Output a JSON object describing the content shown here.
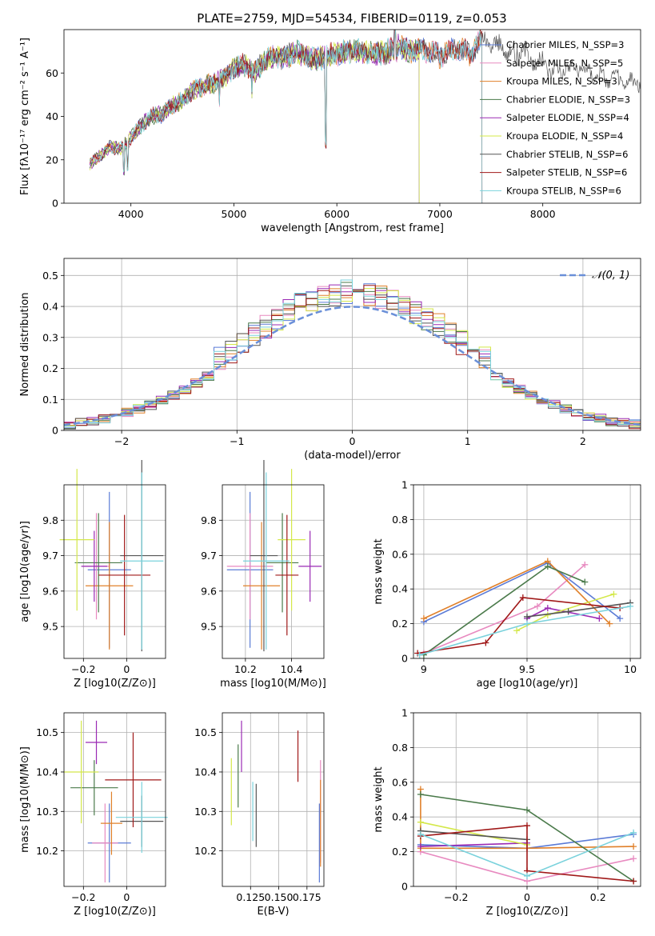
{
  "chart_data": [
    {
      "type": "line",
      "title": "PLATE=2759, MJD=54534, FIBERID=0119, z=0.053",
      "xlabel": "wavelength [Angstrom, rest frame]",
      "ylabel": "Flux [fλ10⁻¹⁷ erg cm⁻² s⁻¹ A⁻¹]",
      "xlim": [
        3350,
        8950
      ],
      "ylim": [
        0,
        80
      ],
      "xticks": [
        4000,
        5000,
        6000,
        7000,
        8000
      ],
      "yticks": [
        0,
        20,
        40,
        60
      ],
      "legend_position": "upper-right",
      "spectrum": {
        "x": [
          3600,
          3700,
          3800,
          3900,
          4000,
          4100,
          4200,
          4300,
          4400,
          4500,
          4600,
          4700,
          4800,
          4900,
          5000,
          5100,
          5200,
          5300,
          5400,
          5500,
          5600,
          5700,
          5800,
          5900,
          6000,
          6100,
          6200,
          6300,
          6400,
          6500,
          6600,
          6700,
          6800,
          6900,
          7000,
          7100,
          7200,
          7300,
          7400,
          7500,
          7600,
          7700,
          7800,
          7900,
          8000,
          8100,
          8200,
          8300,
          8400,
          8500,
          8600,
          8700,
          8800,
          8900
        ],
        "y": [
          18,
          22,
          26,
          25,
          30,
          36,
          40,
          41,
          45,
          47,
          52,
          54,
          55,
          58,
          62,
          64,
          60,
          66,
          68,
          67,
          70,
          68,
          66,
          68,
          69,
          70,
          70,
          69,
          69,
          70,
          72,
          70,
          71,
          70,
          68,
          70,
          71,
          69,
          75,
          74,
          72,
          68,
          70,
          66,
          65,
          61,
          62,
          63,
          62,
          60,
          57,
          58,
          55,
          56
        ]
      },
      "series": [
        {
          "name": "Chabrier MILES, N_SSP=3",
          "color": "#5b7bd6",
          "end_x": 7410
        },
        {
          "name": "Salpeter MILES, N_SSP=5",
          "color": "#e88ac0",
          "end_x": 7410
        },
        {
          "name": "Kroupa MILES, N_SSP=3",
          "color": "#e0802a",
          "end_x": 7410
        },
        {
          "name": "Chabrier ELODIE, N_SSP=3",
          "color": "#4a7a4a",
          "end_x": 6800
        },
        {
          "name": "Salpeter ELODIE, N_SSP=4",
          "color": "#9a2ab4",
          "end_x": 6800
        },
        {
          "name": "Kroupa ELODIE, N_SSP=4",
          "color": "#d4e84a",
          "end_x": 6800
        },
        {
          "name": "Chabrier STELIB, N_SSP=6",
          "color": "#555555",
          "end_x": 8950
        },
        {
          "name": "Salpeter STELIB, N_SSP=6",
          "color": "#a01818",
          "end_x": 7410
        },
        {
          "name": "Kroupa STELIB, N_SSP=6",
          "color": "#7ad2dc",
          "end_x": 7410
        }
      ]
    },
    {
      "type": "line",
      "xlabel": "(data-model)/error",
      "ylabel": "Normed distribution",
      "xlim": [
        -2.5,
        2.5
      ],
      "ylim": [
        0,
        0.555
      ],
      "xticks": [
        -2,
        -1,
        0,
        1,
        2
      ],
      "yticks": [
        0.0,
        0.1,
        0.2,
        0.3,
        0.4,
        0.5
      ],
      "grid": true,
      "legend_label": "𝒩(0, 1)",
      "legend_position": "upper-right",
      "reference_color": "#6a8fd8",
      "hist_colors": [
        "#5b7bd6",
        "#e88ac0",
        "#e0802a",
        "#4a7a4a",
        "#9a2ab4",
        "#d4e84a",
        "#555555",
        "#a01818",
        "#7ad2dc"
      ]
    },
    {
      "type": "scatter",
      "xlabel": "Z [log10(Z/Z⊙)]",
      "ylabel": "age  [log10(age/yr)]",
      "xlim": [
        -0.29,
        0.18
      ],
      "ylim": [
        9.41,
        9.9
      ],
      "xticks": [
        -0.2,
        0.0
      ],
      "yticks": [
        9.5,
        9.6,
        9.7,
        9.8
      ],
      "grid": true,
      "points": [
        {
          "color": "#5b7bd6",
          "x": -0.08,
          "xerr": 0.1,
          "y": 9.66,
          "yerr": 0.22
        },
        {
          "color": "#e88ac0",
          "x": -0.14,
          "xerr": 0.06,
          "y": 9.67,
          "yerr": 0.15
        },
        {
          "color": "#e0802a",
          "x": -0.08,
          "xerr": 0.11,
          "y": 9.615,
          "yerr": 0.18
        },
        {
          "color": "#4a7a4a",
          "x": -0.13,
          "xerr": 0.11,
          "y": 9.68,
          "yerr": 0.14
        },
        {
          "color": "#9a2ab4",
          "x": -0.15,
          "xerr": 0.06,
          "y": 9.67,
          "yerr": 0.1
        },
        {
          "color": "#d4e84a",
          "x": -0.23,
          "xerr": 0.08,
          "y": 9.745,
          "yerr": 0.2
        },
        {
          "color": "#555555",
          "x": 0.07,
          "xerr": 0.1,
          "y": 9.7,
          "yerr": 0.27
        },
        {
          "color": "#a01818",
          "x": -0.01,
          "xerr": 0.12,
          "y": 9.645,
          "yerr": 0.17
        },
        {
          "color": "#7ad2dc",
          "x": 0.07,
          "xerr": 0.1,
          "y": 9.685,
          "yerr": 0.25
        }
      ]
    },
    {
      "type": "scatter",
      "xlabel": "mass [log10(M/M⊙)]",
      "xlim": [
        10.1,
        10.54
      ],
      "ylim": [
        9.41,
        9.9
      ],
      "xticks": [
        10.2,
        10.4
      ],
      "yticks": [
        9.5,
        9.6,
        9.7,
        9.8
      ],
      "grid": true,
      "points": [
        {
          "color": "#5b7bd6",
          "x": 10.22,
          "xerr": 0.1,
          "y": 9.66,
          "yerr": 0.22
        },
        {
          "color": "#e88ac0",
          "x": 10.22,
          "xerr": 0.1,
          "y": 9.67,
          "yerr": 0.15
        },
        {
          "color": "#e0802a",
          "x": 10.27,
          "xerr": 0.08,
          "y": 9.615,
          "yerr": 0.18
        },
        {
          "color": "#4a7a4a",
          "x": 10.36,
          "xerr": 0.07,
          "y": 9.68,
          "yerr": 0.14
        },
        {
          "color": "#9a2ab4",
          "x": 10.48,
          "xerr": 0.05,
          "y": 9.67,
          "yerr": 0.1
        },
        {
          "color": "#d4e84a",
          "x": 10.4,
          "xerr": 0.06,
          "y": 9.745,
          "yerr": 0.2
        },
        {
          "color": "#555555",
          "x": 10.28,
          "xerr": 0.06,
          "y": 9.7,
          "yerr": 0.27
        },
        {
          "color": "#a01818",
          "x": 10.38,
          "xerr": 0.05,
          "y": 9.645,
          "yerr": 0.17
        },
        {
          "color": "#7ad2dc",
          "x": 10.29,
          "xerr": 0.1,
          "y": 9.685,
          "yerr": 0.25
        }
      ]
    },
    {
      "type": "line",
      "xlabel": "age  [log10(age/yr)]",
      "ylabel": "mass weight",
      "xlim": [
        8.95,
        10.05
      ],
      "ylim": [
        0,
        1
      ],
      "xticks": [
        9.0,
        9.5,
        10.0
      ],
      "yticks": [
        0.0,
        0.2,
        0.4,
        0.6,
        0.8,
        1.0
      ],
      "grid": true,
      "series": [
        {
          "color": "#5b7bd6",
          "x": [
            9.0,
            9.6,
            9.95
          ],
          "y": [
            0.21,
            0.55,
            0.23
          ]
        },
        {
          "color": "#e88ac0",
          "x": [
            9.0,
            9.55,
            9.78
          ],
          "y": [
            0.03,
            0.3,
            0.54
          ]
        },
        {
          "color": "#e0802a",
          "x": [
            9.0,
            9.6,
            9.9
          ],
          "y": [
            0.23,
            0.56,
            0.2
          ]
        },
        {
          "color": "#4a7a4a",
          "x": [
            9.0,
            9.6,
            9.78
          ],
          "y": [
            0.02,
            0.53,
            0.44
          ]
        },
        {
          "color": "#9a2ab4",
          "x": [
            9.5,
            9.6,
            9.85
          ],
          "y": [
            0.23,
            0.29,
            0.23
          ]
        },
        {
          "color": "#d4e84a",
          "x": [
            9.45,
            9.6,
            9.92
          ],
          "y": [
            0.16,
            0.25,
            0.37
          ]
        },
        {
          "color": "#555555",
          "x": [
            9.5,
            9.7,
            10.0
          ],
          "y": [
            0.24,
            0.27,
            0.32
          ]
        },
        {
          "color": "#a01818",
          "x": [
            8.97,
            9.3,
            9.48,
            9.95
          ],
          "y": [
            0.03,
            0.09,
            0.35,
            0.29
          ]
        },
        {
          "color": "#7ad2dc",
          "x": [
            8.98,
            9.5,
            10.0
          ],
          "y": [
            0.02,
            0.2,
            0.3
          ]
        }
      ]
    },
    {
      "type": "scatter",
      "xlabel": "Z [log10(Z/Z⊙)]",
      "ylabel": "mass [log10(M/M⊙)]",
      "xlim": [
        -0.29,
        0.18
      ],
      "ylim": [
        10.11,
        10.55
      ],
      "xticks": [
        -0.2,
        0.0
      ],
      "yticks": [
        10.2,
        10.3,
        10.4,
        10.5
      ],
      "grid": true,
      "points": [
        {
          "color": "#5b7bd6",
          "x": -0.08,
          "xerr": 0.1,
          "y": 10.22,
          "yerr": 0.1
        },
        {
          "color": "#e88ac0",
          "x": -0.1,
          "xerr": 0.06,
          "y": 10.22,
          "yerr": 0.1
        },
        {
          "color": "#e0802a",
          "x": -0.07,
          "xerr": 0.05,
          "y": 10.27,
          "yerr": 0.08
        },
        {
          "color": "#4a7a4a",
          "x": -0.15,
          "xerr": 0.11,
          "y": 10.36,
          "yerr": 0.07
        },
        {
          "color": "#9a2ab4",
          "x": -0.14,
          "xerr": 0.05,
          "y": 10.475,
          "yerr": 0.055
        },
        {
          "color": "#d4e84a",
          "x": -0.21,
          "xerr": 0.08,
          "y": 10.4,
          "yerr": 0.13
        },
        {
          "color": "#555555",
          "x": 0.07,
          "xerr": 0.1,
          "y": 10.275,
          "yerr": 0.065
        },
        {
          "color": "#a01818",
          "x": 0.03,
          "xerr": 0.13,
          "y": 10.38,
          "yerr": 0.12
        },
        {
          "color": "#7ad2dc",
          "x": 0.07,
          "xerr": 0.12,
          "y": 10.285,
          "yerr": 0.09
        }
      ]
    },
    {
      "type": "scatter",
      "xlabel": "E(B-V)",
      "xlim": [
        0.1,
        0.19
      ],
      "ylim": [
        10.11,
        10.55
      ],
      "xticks": [
        0.125,
        0.15,
        0.175
      ],
      "tick_labels": [
        "0.125",
        "0.150",
        "0.175"
      ],
      "yticks": [
        10.2,
        10.3,
        10.4,
        10.5
      ],
      "grid": true,
      "points": [
        {
          "color": "#5b7bd6",
          "x": 0.186,
          "xerr": 0,
          "y": 10.22,
          "yerr": 0.1
        },
        {
          "color": "#e88ac0",
          "x": 0.187,
          "xerr": 0,
          "y": 10.3,
          "yerr": 0.13
        },
        {
          "color": "#e0802a",
          "x": 0.187,
          "xerr": 0,
          "y": 10.27,
          "yerr": 0.11
        },
        {
          "color": "#4a7a4a",
          "x": 0.114,
          "xerr": 0,
          "y": 10.39,
          "yerr": 0.08
        },
        {
          "color": "#9a2ab4",
          "x": 0.117,
          "xerr": 0,
          "y": 10.465,
          "yerr": 0.065
        },
        {
          "color": "#d4e84a",
          "x": 0.108,
          "xerr": 0,
          "y": 10.35,
          "yerr": 0.085
        },
        {
          "color": "#555555",
          "x": 0.13,
          "xerr": 0,
          "y": 10.29,
          "yerr": 0.08
        },
        {
          "color": "#a01818",
          "x": 0.167,
          "xerr": 0,
          "y": 10.44,
          "yerr": 0.065
        },
        {
          "color": "#7ad2dc",
          "x": 0.127,
          "xerr": 0,
          "y": 10.3,
          "yerr": 0.075
        }
      ]
    },
    {
      "type": "line",
      "xlabel": "Z [log10(Z/Z⊙)]",
      "ylabel": "mass weight",
      "xlim": [
        -0.32,
        0.32
      ],
      "ylim": [
        0,
        1
      ],
      "xticks": [
        -0.2,
        0.0,
        0.2
      ],
      "yticks": [
        0.0,
        0.2,
        0.4,
        0.6,
        0.8,
        1.0
      ],
      "grid": true,
      "series": [
        {
          "color": "#5b7bd6",
          "x": [
            -0.3,
            0.0,
            0.3
          ],
          "y": [
            0.24,
            0.22,
            0.3
          ]
        },
        {
          "color": "#e88ac0",
          "x": [
            -0.3,
            0.0,
            0.3
          ],
          "y": [
            0.2,
            0.03,
            0.16
          ]
        },
        {
          "color": "#e0802a",
          "x": [
            -0.3,
            -0.3,
            0.0,
            0.3
          ],
          "y": [
            0.56,
            0.22,
            0.22,
            0.23
          ]
        },
        {
          "color": "#4a7a4a",
          "x": [
            -0.3,
            0.0,
            0.3
          ],
          "y": [
            0.53,
            0.44,
            0.03
          ]
        },
        {
          "color": "#9a2ab4",
          "x": [
            -0.3,
            0.0
          ],
          "y": [
            0.23,
            0.25
          ]
        },
        {
          "color": "#d4e84a",
          "x": [
            -0.3,
            0.0
          ],
          "y": [
            0.37,
            0.24
          ]
        },
        {
          "color": "#555555",
          "x": [
            -0.3,
            0.0
          ],
          "y": [
            0.32,
            0.27
          ]
        },
        {
          "color": "#a01818",
          "x": [
            -0.3,
            0.0,
            0.0,
            0.3
          ],
          "y": [
            0.29,
            0.35,
            0.09,
            0.03
          ]
        },
        {
          "color": "#7ad2dc",
          "x": [
            -0.3,
            0.0,
            0.3
          ],
          "y": [
            0.3,
            0.06,
            0.31
          ]
        }
      ]
    }
  ]
}
